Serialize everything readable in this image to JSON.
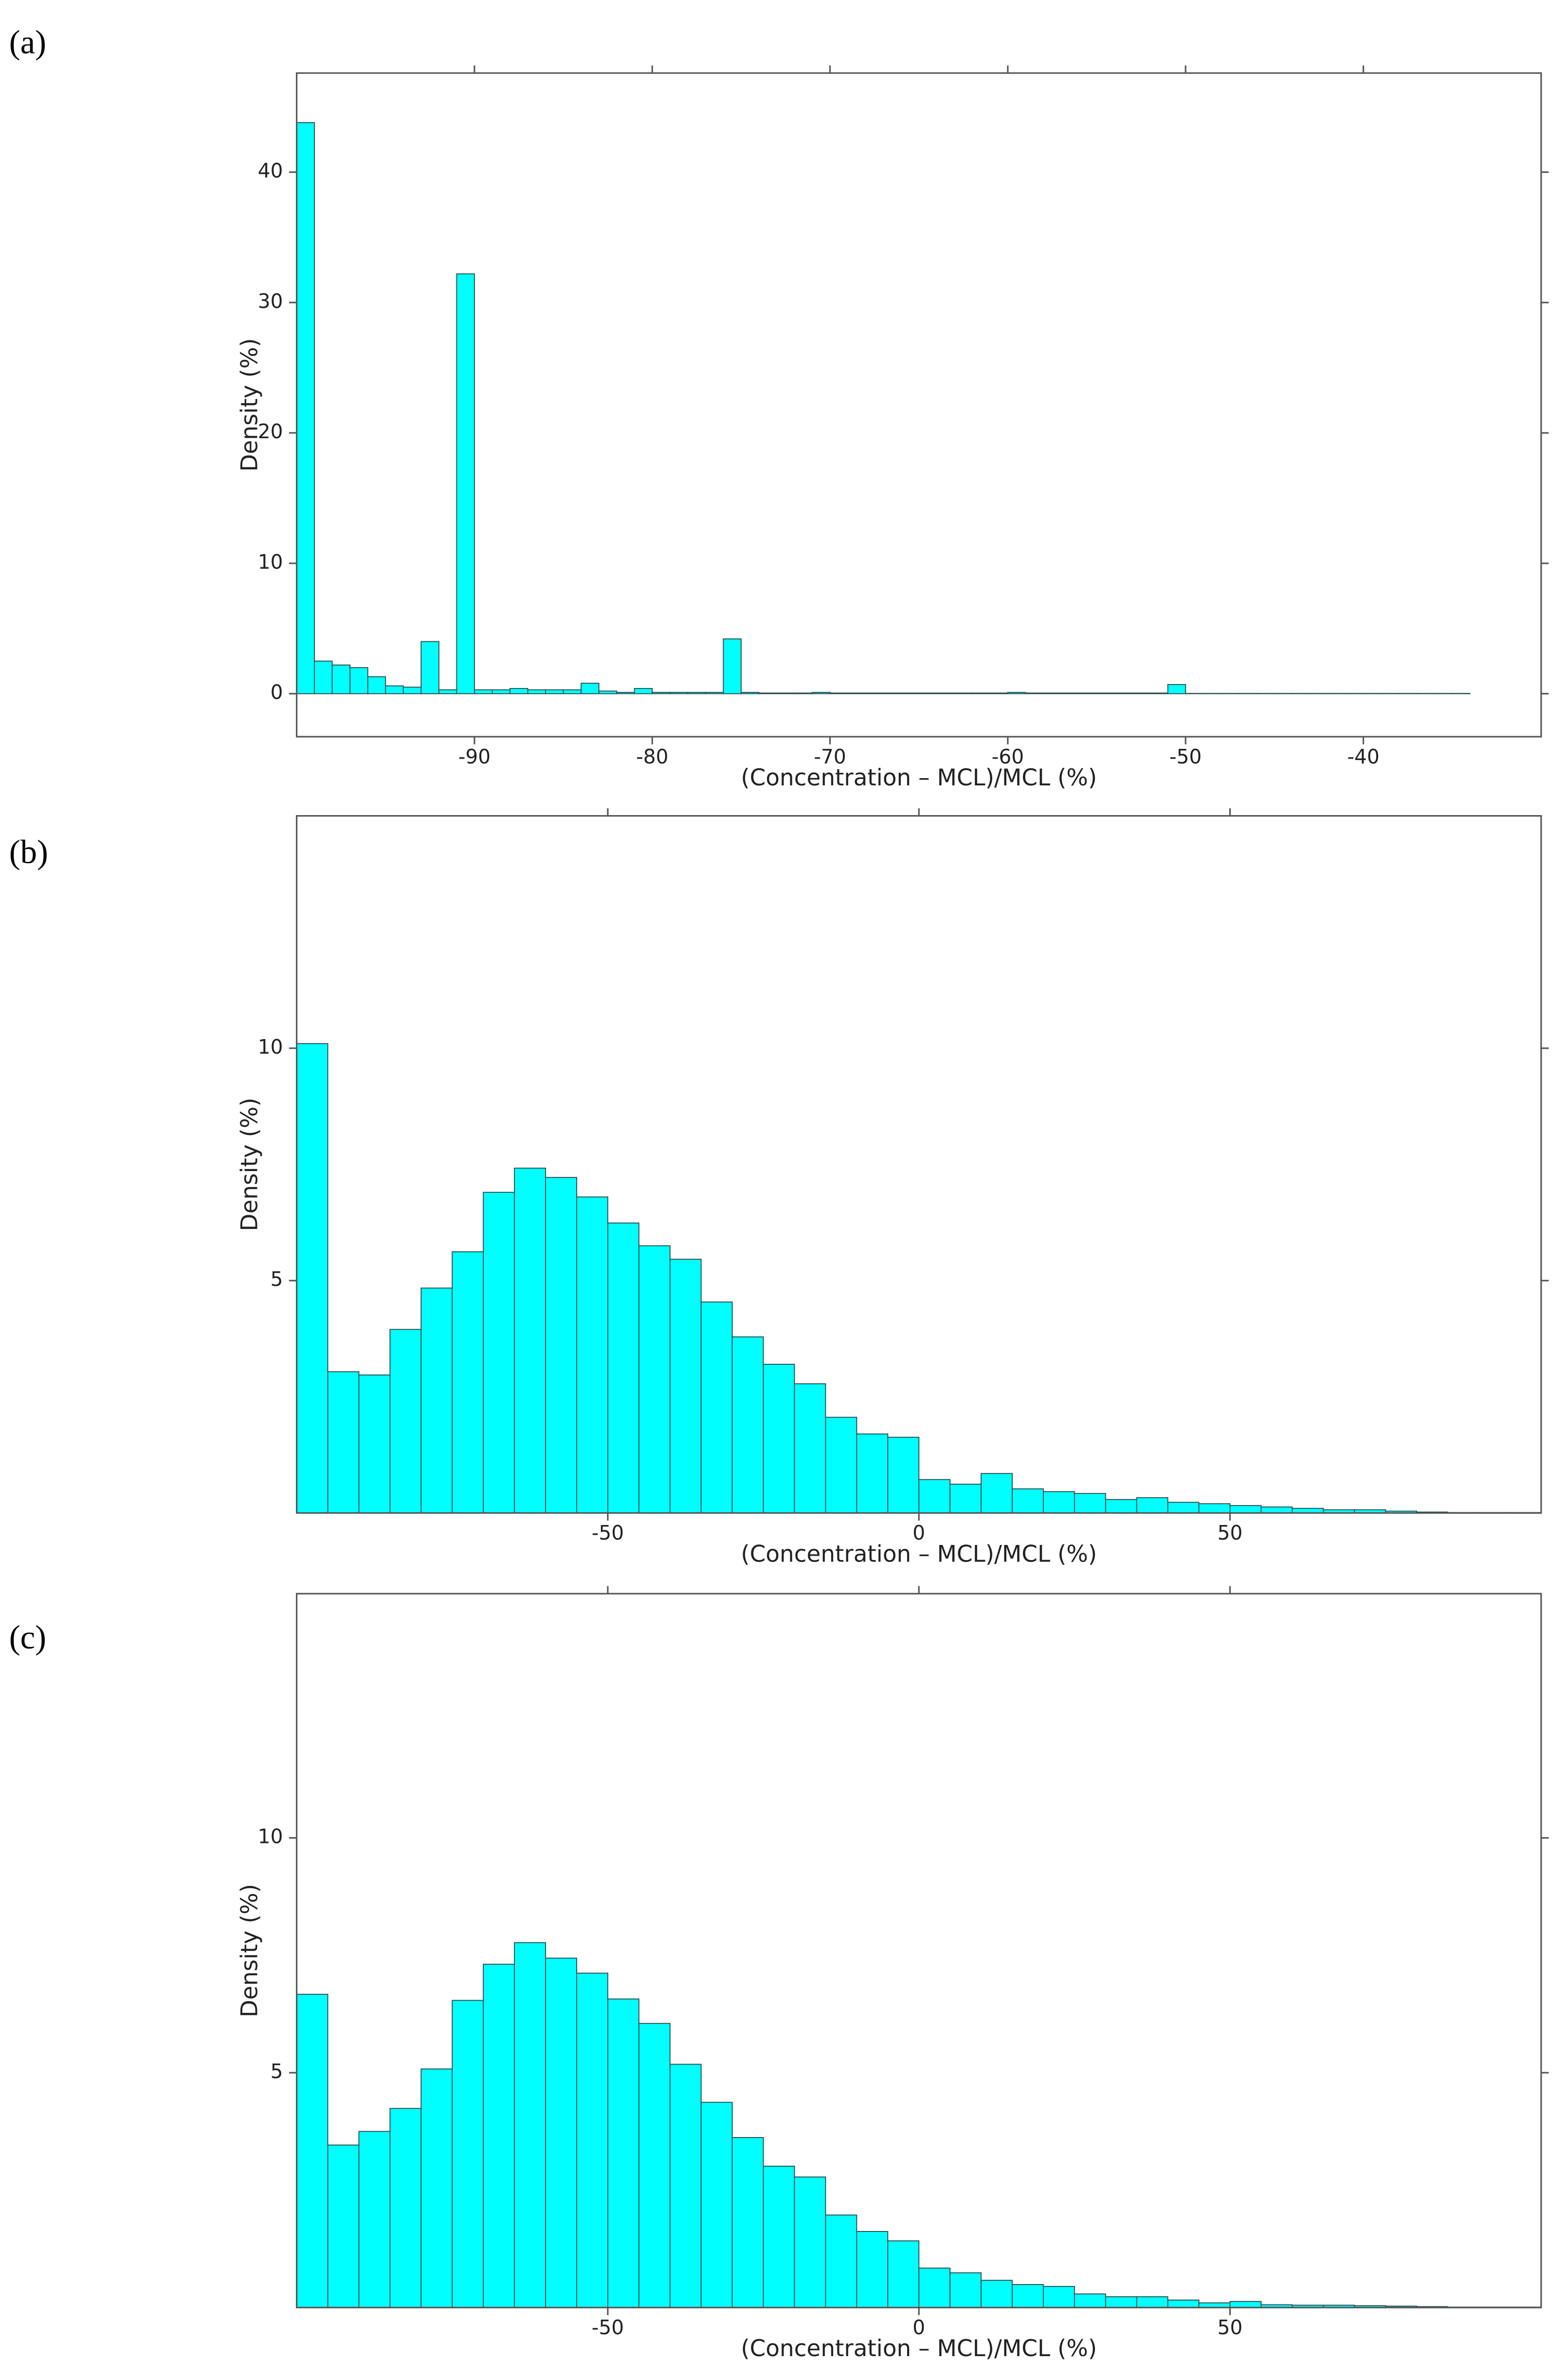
{
  "chart_data": [
    {
      "type": "histogram",
      "panel_label": "(a)",
      "xlabel": "(Concentration – MCL)/MCL (%)",
      "ylabel": "Density (%)",
      "color": "#00ffff",
      "bins": [
        -100,
        -99,
        -98,
        -97,
        -96,
        -95,
        -94,
        -93,
        -92,
        -91,
        -90,
        -89,
        -88,
        -87,
        -86,
        -85,
        -84,
        -83,
        -82,
        -81,
        -80,
        -79,
        -78,
        -77,
        -76,
        -75,
        -74,
        -73,
        -72,
        -71,
        -70,
        -69,
        -68,
        -67,
        -66,
        -65,
        -64,
        -63,
        -62,
        -61,
        -60,
        -59,
        -58,
        -57,
        -56,
        -55,
        -54,
        -53,
        -52,
        -51,
        -50,
        -49,
        -48,
        -47,
        -46,
        -45,
        -44,
        -43,
        -42,
        -41,
        -40,
        -39,
        -38,
        -37,
        -36,
        -35,
        -34
      ],
      "values": [
        43.8,
        2.5,
        2.2,
        2.0,
        1.3,
        0.6,
        0.5,
        4.0,
        0.3,
        32.2,
        0.3,
        0.3,
        0.4,
        0.3,
        0.3,
        0.3,
        0.8,
        0.2,
        0.1,
        0.4,
        0.1,
        0.1,
        0.1,
        0.1,
        4.2,
        0.1,
        0.05,
        0.05,
        0.05,
        0.1,
        0.05,
        0.05,
        0.05,
        0.05,
        0.05,
        0.05,
        0.05,
        0.05,
        0.05,
        0.05,
        0.1,
        0.05,
        0.05,
        0.05,
        0.05,
        0.05,
        0.05,
        0.05,
        0.05,
        0.7,
        0.02,
        0.02,
        0.02,
        0.02,
        0.02,
        0.02,
        0.02,
        0.02,
        0.02,
        0.02,
        0.02,
        0.02,
        0.02,
        0.02,
        0.02,
        0.02
      ],
      "xlim": [
        -100,
        -30
      ],
      "ylim": [
        -3.3,
        47.6
      ],
      "xticks": [
        -90,
        -80,
        -70,
        -60,
        -50,
        -40
      ],
      "yticks": [
        0,
        10,
        20,
        30,
        40
      ]
    },
    {
      "type": "histogram",
      "panel_label": "(b)",
      "xlabel": "(Concentration – MCL)/MCL (%)",
      "ylabel": "Density (%)",
      "color": "#00ffff",
      "bins": [
        -100,
        -95,
        -90,
        -85,
        -80,
        -75,
        -70,
        -65,
        -60,
        -55,
        -50,
        -45,
        -40,
        -35,
        -30,
        -25,
        -20,
        -15,
        -10,
        -5,
        0,
        5,
        10,
        15,
        20,
        25,
        30,
        35,
        40,
        45,
        50,
        55,
        60,
        65,
        70,
        75,
        80,
        85,
        90,
        95,
        100
      ],
      "values": [
        10.1,
        3.04,
        2.97,
        3.95,
        4.84,
        5.62,
        6.9,
        7.42,
        7.22,
        6.8,
        6.24,
        5.75,
        5.46,
        4.54,
        3.79,
        3.2,
        2.78,
        2.06,
        1.7,
        1.63,
        0.72,
        0.62,
        0.85,
        0.52,
        0.46,
        0.42,
        0.29,
        0.33,
        0.23,
        0.2,
        0.16,
        0.13,
        0.1,
        0.07,
        0.07,
        0.04,
        0.02,
        0.01,
        0.01,
        0.01
      ],
      "xlim": [
        -100,
        100
      ],
      "ylim": [
        0,
        15
      ],
      "xticks": [
        -50,
        0,
        50
      ],
      "yticks": [
        5,
        10
      ]
    },
    {
      "type": "histogram",
      "panel_label": "(c)",
      "xlabel": "(Concentration – MCL)/MCL (%)",
      "ylabel": "Density (%)",
      "color": "#00ffff",
      "bins": [
        -100,
        -95,
        -90,
        -85,
        -80,
        -75,
        -70,
        -65,
        -60,
        -55,
        -50,
        -45,
        -40,
        -35,
        -30,
        -25,
        -20,
        -15,
        -10,
        -5,
        0,
        5,
        10,
        15,
        20,
        25,
        30,
        35,
        40,
        45,
        50,
        55,
        60,
        65,
        70,
        75,
        80,
        85,
        90,
        95,
        100
      ],
      "values": [
        6.67,
        3.46,
        3.75,
        4.24,
        5.08,
        6.54,
        7.31,
        7.77,
        7.44,
        7.12,
        6.57,
        6.05,
        5.18,
        4.37,
        3.62,
        3.01,
        2.78,
        1.97,
        1.62,
        1.42,
        0.84,
        0.74,
        0.58,
        0.49,
        0.45,
        0.29,
        0.23,
        0.23,
        0.16,
        0.1,
        0.13,
        0.06,
        0.05,
        0.05,
        0.04,
        0.03,
        0.02,
        0.01,
        0.01,
        0.01
      ],
      "xlim": [
        -100,
        100
      ],
      "ylim": [
        0,
        15.2
      ],
      "xticks": [
        -50,
        0,
        50
      ],
      "yticks": [
        5,
        10
      ]
    }
  ]
}
